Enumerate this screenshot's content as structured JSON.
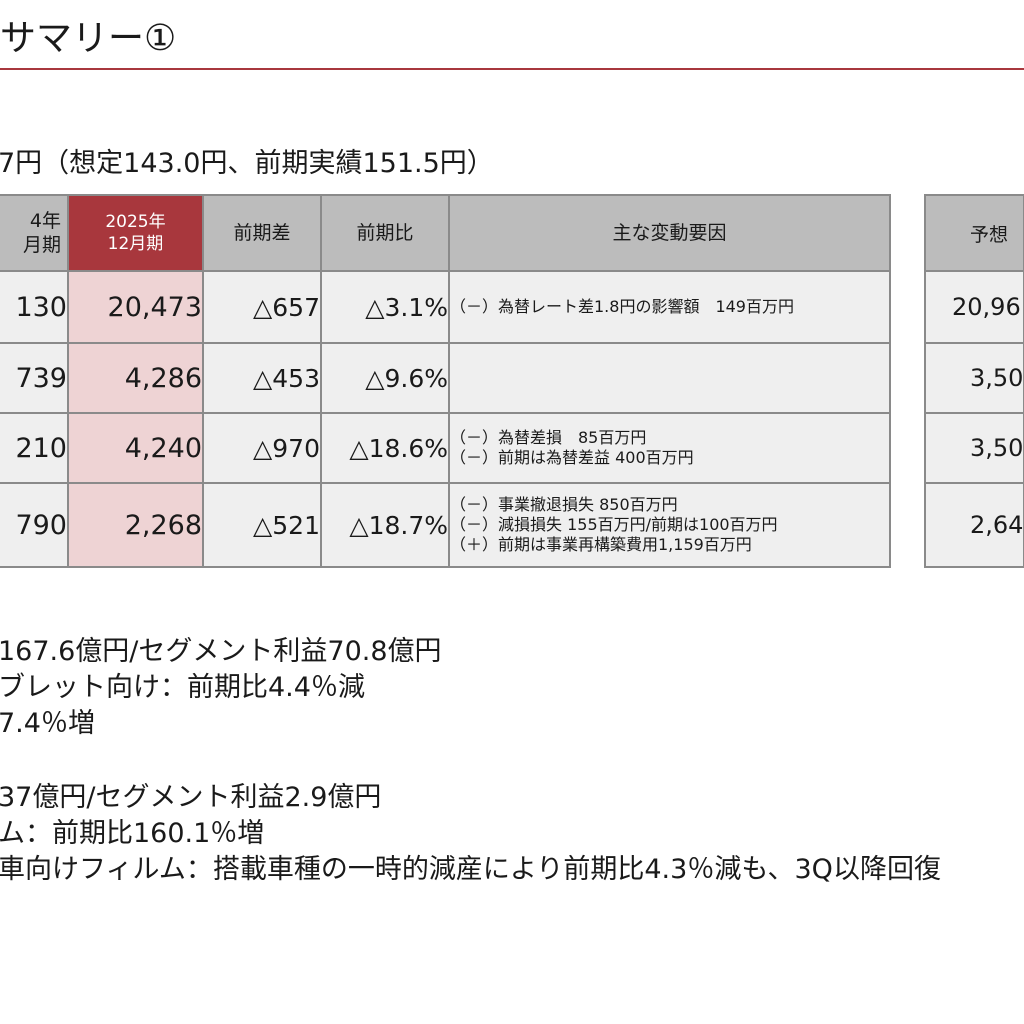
{
  "title": "サマリー①",
  "rate_line": "7円（想定143.0円、前期実績151.5円）",
  "table": {
    "headers": {
      "prev_period": "4年\n月期",
      "current_period": "2025年\n12月期",
      "diff": "前期差",
      "ratio": "前期比",
      "factors": "主な変動要因"
    },
    "rows": [
      {
        "prev": "130",
        "current": "20,473",
        "diff": "△657",
        "ratio": "△3.1%",
        "factors": [
          "（－）為替レート差1.8円の影響額　149百万円"
        ]
      },
      {
        "prev": "739",
        "current": "4,286",
        "diff": "△453",
        "ratio": "△9.6%",
        "factors": []
      },
      {
        "prev": "210",
        "current": "4,240",
        "diff": "△970",
        "ratio": "△18.6%",
        "factors": [
          "（－）為替差損　85百万円",
          "（－）前期は為替差益 400百万円"
        ]
      },
      {
        "prev": "790",
        "current": "2,268",
        "diff": "△521",
        "ratio": "△18.7%",
        "factors": [
          "（－）事業撤退損失 850百万円",
          "（－）減損損失 155百万円/前期は100百万円",
          "（＋）前期は事業再構築費用1,159百万円"
        ]
      }
    ]
  },
  "forecast": {
    "header": "予想",
    "values": [
      "20,96",
      "3,50",
      "3,50",
      "2,64"
    ]
  },
  "bullets": [
    "167.6億円/セグメント利益70.8億円",
    "ブレット向け：前期比4.4％減",
    "7.4％増",
    "",
    "37億円/セグメント利益2.9億円",
    "ム：前期比160.1％増",
    "車向けフィルム：搭載車種の一時的減産により前期比4.3％減も、3Q以降回復"
  ]
}
